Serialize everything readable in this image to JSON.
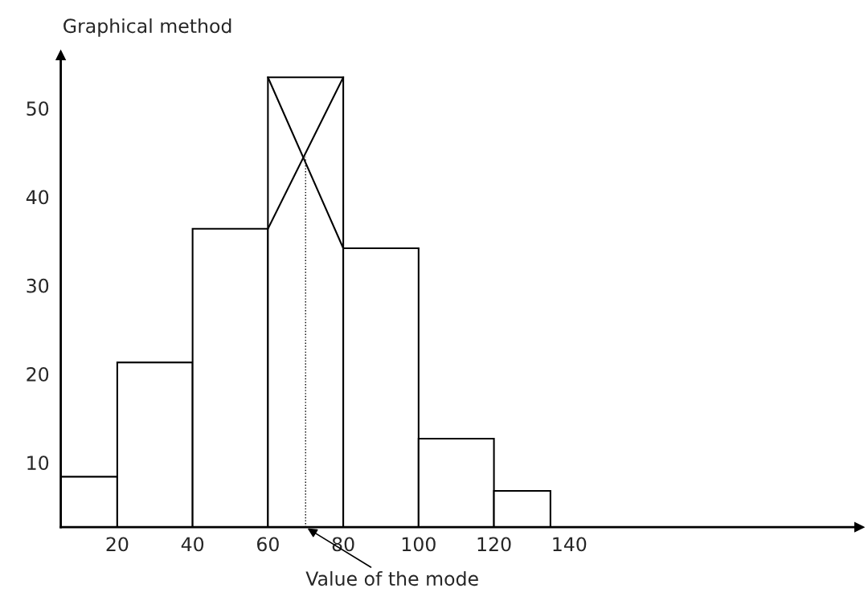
{
  "chart_data": {
    "type": "histogram",
    "title": "Graphical method",
    "bins": [
      5,
      20,
      40,
      60,
      80,
      100,
      120,
      135
    ],
    "values": [
      8.4,
      21.3,
      36.4,
      53.5,
      34.2,
      12.7,
      6.8
    ],
    "color": "#000000",
    "series": [
      {
        "type": "line",
        "x": [
          60,
          80
        ],
        "values": [
          36.4,
          53.5
        ],
        "color": "#000000",
        "line_style": "solid"
      },
      {
        "type": "line",
        "x": [
          60,
          80
        ],
        "values": [
          53.5,
          34.2
        ],
        "color": "#000000",
        "line_style": "solid"
      },
      {
        "type": "line",
        "x": [
          70,
          70
        ],
        "values": [
          2.7,
          44.5
        ],
        "color": "#000000",
        "line_style": "dotted"
      }
    ],
    "annotations": [
      {
        "text": "Value of the mode",
        "x": 70,
        "y": 2.7
      }
    ],
    "xlim": [
      5,
      217
    ],
    "ylim": [
      2.7,
      56
    ],
    "xticks": [
      20,
      40,
      60,
      80,
      100,
      120,
      140
    ],
    "yticks": [
      10,
      20,
      30,
      40,
      50
    ],
    "grid": false,
    "legend": false
  }
}
